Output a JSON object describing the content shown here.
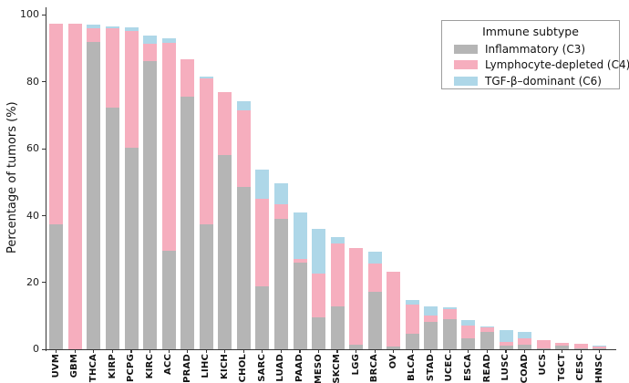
{
  "chart_data": {
    "type": "bar",
    "stacked": true,
    "title": "",
    "xlabel": "",
    "ylabel": "Percentage of tumors (%)",
    "ylim": [
      0,
      100
    ],
    "yticks": [
      0,
      20,
      40,
      60,
      80,
      100
    ],
    "grid": false,
    "background": "#ffffff",
    "axis_color": "#363636",
    "legend": {
      "title": "Immune subtype",
      "position": "top-right",
      "entries": [
        {
          "label": "Inflammatory (C3)",
          "color": "#b5b5b5"
        },
        {
          "label": "Lymphocyte-depleted (C4)",
          "color": "#f6aebe"
        },
        {
          "label": "TGF-β–dominant (C6)",
          "color": "#aed7e8"
        }
      ]
    },
    "categories": [
      "UVM",
      "GBM",
      "THCA",
      "KIRP",
      "PCPG",
      "KIRC",
      "ACC",
      "PRAD",
      "LIHC",
      "KICH",
      "CHOL",
      "SARC",
      "LUAD",
      "PAAD",
      "MESO",
      "SKCM",
      "LGG",
      "BRCA",
      "OV",
      "BLCA",
      "STAD",
      "UCEC",
      "ESCA",
      "READ",
      "LUSC",
      "COAD",
      "UCS",
      "TGCT",
      "CESC",
      "HNSC"
    ],
    "series": [
      {
        "name": "Inflammatory (C3)",
        "color": "#b5b5b5",
        "values": [
          37.5,
          0,
          91.8,
          72.3,
          60.2,
          86.3,
          29.5,
          75.6,
          37.4,
          58.2,
          48.6,
          18.9,
          39.0,
          25.9,
          9.6,
          13.0,
          1.4,
          17.3,
          1.0,
          4.6,
          8.2,
          9.0,
          3.4,
          5.3,
          1.3,
          1.5,
          0.3,
          1.2,
          0.3,
          0.4
        ]
      },
      {
        "name": "Lymphocyte-depleted (C4)",
        "color": "#f6aebe",
        "values": [
          59.9,
          97.4,
          4.3,
          23.6,
          35.0,
          5.2,
          62.2,
          11.2,
          43.5,
          18.6,
          22.8,
          26.2,
          4.3,
          1.1,
          13.0,
          18.6,
          28.9,
          8.3,
          22.3,
          8.8,
          2.1,
          3.2,
          3.7,
          1.2,
          1.0,
          2.0,
          2.6,
          0.7,
          1.5,
          0.4
        ]
      },
      {
        "name": "TGF-β–dominant (C6)",
        "color": "#aed7e8",
        "values": [
          0,
          0,
          0.9,
          0.7,
          1.1,
          2.3,
          1.3,
          0,
          0.7,
          0,
          2.8,
          8.8,
          6.3,
          14.0,
          13.4,
          2.0,
          0,
          3.6,
          0,
          1.4,
          2.6,
          0.4,
          1.6,
          0.4,
          3.4,
          1.7,
          0,
          0,
          0,
          0.5
        ]
      }
    ],
    "stack_totals": [
      97.4,
      97.4,
      97.0,
      96.6,
      96.3,
      93.8,
      93.0,
      86.8,
      81.6,
      76.8,
      74.2,
      53.9,
      49.6,
      41.0,
      36.0,
      33.6,
      30.3,
      29.2,
      23.3,
      14.8,
      12.9,
      12.6,
      8.7,
      6.9,
      5.7,
      5.2,
      2.9,
      1.9,
      1.8,
      1.3
    ]
  }
}
